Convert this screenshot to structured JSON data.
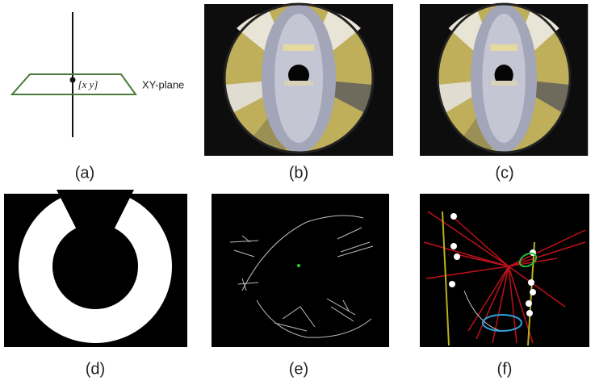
{
  "diagram": {
    "plane_label": "XY-plane",
    "point_label": "[x y]"
  },
  "panels": [
    {
      "label": "(a)"
    },
    {
      "label": "(b)"
    },
    {
      "label": "(c)"
    },
    {
      "label": "(d)"
    },
    {
      "label": "(e)"
    },
    {
      "label": "(f)"
    }
  ]
}
